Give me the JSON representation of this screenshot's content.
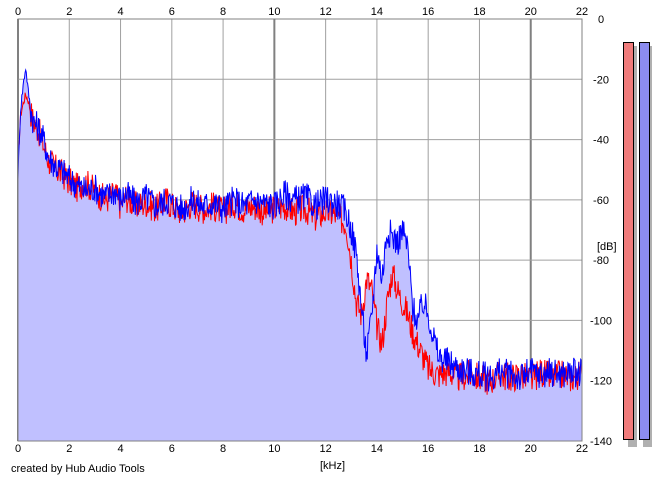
{
  "credit": "created by Hub Audio Tools",
  "colors": {
    "background": "#ffffff",
    "grid": "#a0a0a0",
    "fill": "#c0c0ff",
    "left_channel": "#ff0000",
    "right_channel": "#0000ff",
    "meter_left": "#f07c7c",
    "meter_right": "#8c8cf0"
  },
  "chart_data": {
    "type": "line",
    "title": "",
    "xlabel": "[kHz]",
    "ylabel": "[dB]",
    "xlim": [
      0,
      22
    ],
    "ylim": [
      -140,
      0
    ],
    "x_ticks": [
      0,
      2,
      4,
      6,
      8,
      10,
      12,
      14,
      16,
      18,
      20,
      22
    ],
    "x_tick_labels": [
      "0",
      "2",
      "4",
      "6",
      "8",
      "10",
      "12",
      "14",
      "16",
      "18",
      "20",
      "22"
    ],
    "y_ticks": [
      0,
      -20,
      -40,
      -60,
      -80,
      -100,
      -120,
      -140
    ],
    "y_tick_labels": [
      "0",
      "-20",
      "-40",
      "-60",
      "-80",
      "-100",
      "-120",
      "-140"
    ],
    "grid": true,
    "legend": "none",
    "series": [
      {
        "color": "#ff0000",
        "x": [
          0,
          0.1,
          0.2,
          0.3,
          0.4,
          0.5,
          0.6,
          0.8,
          1.0,
          1.2,
          1.5,
          1.8,
          2.0,
          2.3,
          2.6,
          3.0,
          3.4,
          3.8,
          4.0,
          4.2,
          4.6,
          5.0,
          5.4,
          5.8,
          6.0,
          6.4,
          6.8,
          7.2,
          7.6,
          8.0,
          8.4,
          8.8,
          9.2,
          9.6,
          10.0,
          10.4,
          10.8,
          11.2,
          11.6,
          12.0,
          12.4,
          12.8,
          13.0,
          13.2,
          13.4,
          13.6,
          13.8,
          14.0,
          14.2,
          14.4,
          14.6,
          14.8,
          15.0,
          15.2,
          15.4,
          15.6,
          15.8,
          16.0,
          16.4,
          16.8,
          17.2,
          17.6,
          18.0,
          18.4,
          18.8,
          19.2,
          19.6,
          20.0,
          20.4,
          20.8,
          21.2,
          21.6,
          22.0
        ],
        "y": [
          -48,
          -32,
          -28,
          -25,
          -27,
          -31,
          -34,
          -37,
          -42,
          -47,
          -50,
          -52,
          -54,
          -56,
          -54,
          -57,
          -60,
          -58,
          -62,
          -59,
          -62,
          -61,
          -63,
          -60,
          -62,
          -64,
          -61,
          -63,
          -62,
          -64,
          -61,
          -63,
          -62,
          -64,
          -63,
          -62,
          -64,
          -63,
          -66,
          -64,
          -65,
          -68,
          -80,
          -94,
          -98,
          -86,
          -90,
          -102,
          -108,
          -94,
          -84,
          -90,
          -94,
          -98,
          -104,
          -108,
          -112,
          -116,
          -118,
          -117,
          -119,
          -118,
          -119,
          -120,
          -118,
          -119,
          -118,
          -120,
          -117,
          -119,
          -118,
          -119,
          -118
        ]
      },
      {
        "color": "#0000ff",
        "x": [
          0,
          0.1,
          0.2,
          0.3,
          0.4,
          0.5,
          0.6,
          0.8,
          1.0,
          1.2,
          1.5,
          1.8,
          2.0,
          2.3,
          2.6,
          3.0,
          3.4,
          3.8,
          4.0,
          4.2,
          4.6,
          5.0,
          5.4,
          5.8,
          6.0,
          6.4,
          6.8,
          7.2,
          7.6,
          8.0,
          8.4,
          8.8,
          9.2,
          9.6,
          10.0,
          10.4,
          10.8,
          11.2,
          11.6,
          12.0,
          12.4,
          12.8,
          13.0,
          13.2,
          13.4,
          13.6,
          13.8,
          14.0,
          14.2,
          14.4,
          14.6,
          14.8,
          15.0,
          15.2,
          15.4,
          15.6,
          15.8,
          16.0,
          16.4,
          16.8,
          17.2,
          17.6,
          18.0,
          18.4,
          18.8,
          19.2,
          19.6,
          20.0,
          20.4,
          20.8,
          21.2,
          21.6,
          22.0
        ],
        "y": [
          -52,
          -30,
          -22,
          -16,
          -24,
          -30,
          -34,
          -36,
          -40,
          -46,
          -49,
          -51,
          -53,
          -55,
          -57,
          -56,
          -59,
          -57,
          -60,
          -58,
          -61,
          -59,
          -62,
          -60,
          -61,
          -63,
          -60,
          -62,
          -61,
          -63,
          -60,
          -62,
          -60,
          -61,
          -62,
          -58,
          -60,
          -59,
          -62,
          -60,
          -61,
          -64,
          -70,
          -78,
          -96,
          -112,
          -98,
          -76,
          -86,
          -70,
          -72,
          -74,
          -70,
          -76,
          -96,
          -100,
          -94,
          -98,
          -112,
          -114,
          -116,
          -117,
          -118,
          -119,
          -117,
          -118,
          -119,
          -117,
          -118,
          -117,
          -118,
          -117,
          -118
        ]
      }
    ]
  }
}
